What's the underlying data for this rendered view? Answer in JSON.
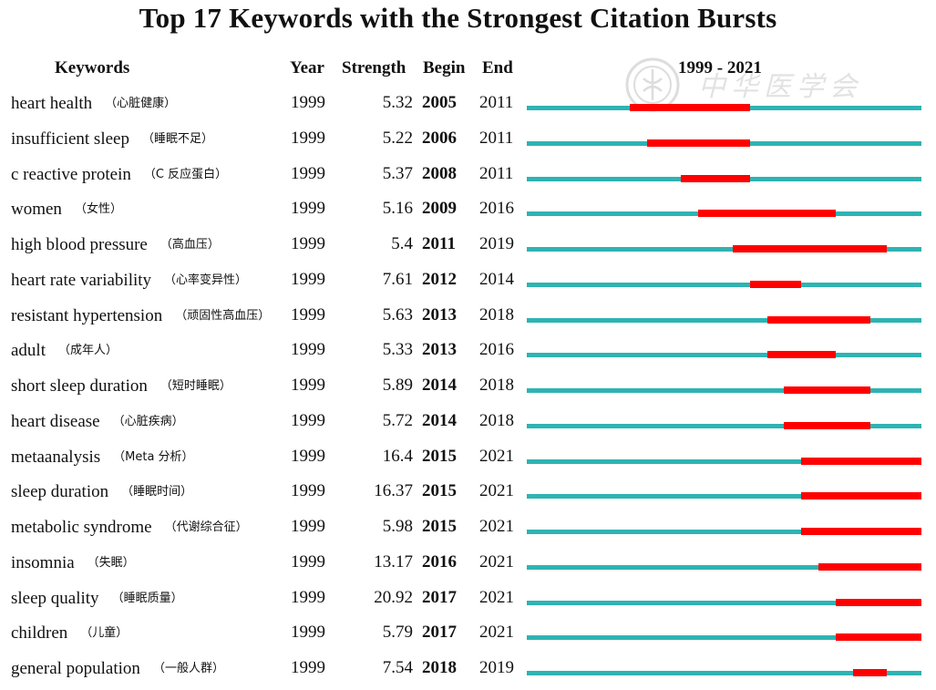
{
  "chart_data": {
    "type": "table",
    "title": "Top 17 Keywords with the Strongest Citation Bursts",
    "columns": [
      "Keywords",
      "Year",
      "Strength",
      "Begin",
      "End",
      "1999 - 2021"
    ],
    "range_start": 1999,
    "range_end": 2021,
    "colors": {
      "track": "#2fb3b3",
      "burst": "#ff0000"
    },
    "rows": [
      {
        "keyword": "heart health",
        "cn": "（心脏健康）",
        "year": "1999",
        "strength": "5.32",
        "begin": "2005",
        "end": "2011"
      },
      {
        "keyword": "insufficient sleep",
        "cn": "（睡眠不足）",
        "year": "1999",
        "strength": "5.22",
        "begin": "2006",
        "end": "2011"
      },
      {
        "keyword": "c reactive protein",
        "cn": "（C 反应蛋白）",
        "year": "1999",
        "strength": "5.37",
        "begin": "2008",
        "end": "2011"
      },
      {
        "keyword": "women",
        "cn": "（女性）",
        "year": "1999",
        "strength": "5.16",
        "begin": "2009",
        "end": "2016"
      },
      {
        "keyword": "high blood pressure",
        "cn": "（高血压）",
        "year": "1999",
        "strength": "5.4",
        "begin": "2011",
        "end": "2019"
      },
      {
        "keyword": "heart rate variability",
        "cn": "（心率变异性）",
        "year": "1999",
        "strength": "7.61",
        "begin": "2012",
        "end": "2014"
      },
      {
        "keyword": "resistant hypertension",
        "cn": "（顽固性高血压）",
        "year": "1999",
        "strength": "5.63",
        "begin": "2013",
        "end": "2018"
      },
      {
        "keyword": "adult",
        "cn": "（成年人）",
        "year": "1999",
        "strength": "5.33",
        "begin": "2013",
        "end": "2016"
      },
      {
        "keyword": "short sleep duration",
        "cn": "（短时睡眠）",
        "year": "1999",
        "strength": "5.89",
        "begin": "2014",
        "end": "2018"
      },
      {
        "keyword": "heart disease",
        "cn": "（心脏疾病）",
        "year": "1999",
        "strength": "5.72",
        "begin": "2014",
        "end": "2018"
      },
      {
        "keyword": "metaanalysis",
        "cn": "（Meta 分析）",
        "year": "1999",
        "strength": "16.4",
        "begin": "2015",
        "end": "2021"
      },
      {
        "keyword": "sleep duration",
        "cn": "（睡眠时间）",
        "year": "1999",
        "strength": "16.37",
        "begin": "2015",
        "end": "2021"
      },
      {
        "keyword": "metabolic syndrome",
        "cn": "（代谢综合征）",
        "year": "1999",
        "strength": "5.98",
        "begin": "2015",
        "end": "2021"
      },
      {
        "keyword": "insomnia",
        "cn": "（失眠）",
        "year": "1999",
        "strength": "13.17",
        "begin": "2016",
        "end": "2021"
      },
      {
        "keyword": "sleep quality",
        "cn": "（睡眠质量）",
        "year": "1999",
        "strength": "20.92",
        "begin": "2017",
        "end": "2021"
      },
      {
        "keyword": "children",
        "cn": "（儿童）",
        "year": "1999",
        "strength": "5.79",
        "begin": "2017",
        "end": "2021"
      },
      {
        "keyword": "general population",
        "cn": "（一般人群）",
        "year": "1999",
        "strength": "7.54",
        "begin": "2018",
        "end": "2019"
      }
    ]
  },
  "watermark": {
    "text": "中华医学会",
    "icon": "society-seal-icon"
  }
}
